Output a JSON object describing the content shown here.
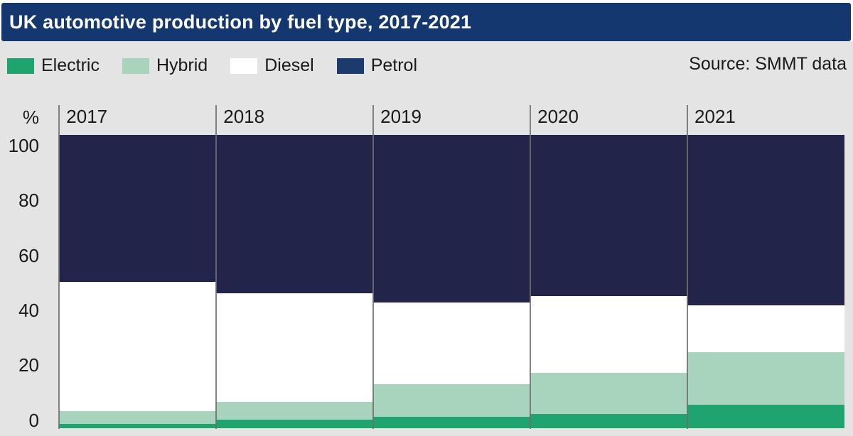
{
  "title": "UK automotive production by fuel type, 2017-2021",
  "source": "Source: SMMT data",
  "y_axis": {
    "unit_label": "%",
    "ticks": [
      "100",
      "80",
      "60",
      "40",
      "20",
      "0"
    ]
  },
  "legend": {
    "items": [
      {
        "label": "Electric",
        "color": "#1fa46f"
      },
      {
        "label": "Hybrid",
        "color": "#a8d3bc"
      },
      {
        "label": "Diesel",
        "color": "#ffffff"
      },
      {
        "label": "Petrol",
        "color": "#1b3a6e"
      }
    ]
  },
  "colors": {
    "header_bg": "#15376f",
    "panel_bg": "#e4e4e4",
    "electric_bar": "#1fa46f",
    "hybrid_bar": "#a8d3bc",
    "diesel_bar": "#ffffff",
    "petrol_bar": "#232449",
    "separator_line": "#6e6e6e",
    "text": "#1a1a1a",
    "title_text": "#ffffff"
  },
  "chart_data": {
    "type": "bar",
    "stacked": true,
    "unit": "percent",
    "title": "UK automotive production by fuel type, 2017-2021",
    "categories": [
      "2017",
      "2018",
      "2019",
      "2020",
      "2021"
    ],
    "series": [
      {
        "name": "Electric",
        "values": [
          1.5,
          3,
          4,
          5,
          8
        ]
      },
      {
        "name": "Hybrid",
        "values": [
          4.5,
          6,
          11,
          14,
          18
        ]
      },
      {
        "name": "Diesel",
        "values": [
          44,
          37,
          28,
          26,
          16
        ]
      },
      {
        "name": "Petrol",
        "values": [
          50,
          54,
          57,
          55,
          58
        ]
      }
    ],
    "stack_order_bottom_to_top": [
      "Electric",
      "Hybrid",
      "Diesel",
      "Petrol"
    ],
    "xlabel": "",
    "ylabel": "%",
    "ylim": [
      0,
      100
    ],
    "grid": false,
    "legend_position": "top-left",
    "source_note": "Source: SMMT data"
  }
}
